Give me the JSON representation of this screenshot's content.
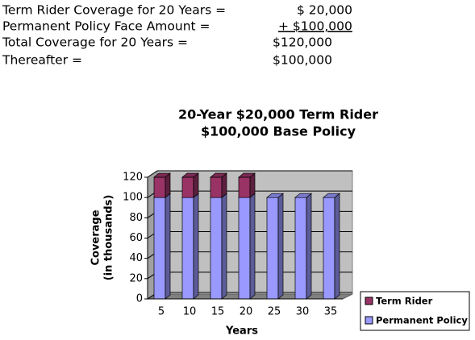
{
  "summary": [
    {
      "label": "Term Rider Coverage for 20 Years =",
      "amount": "$ 20,000"
    },
    {
      "label": "Permanent Policy Face Amount =",
      "amount": "+ $100,000"
    },
    {
      "label": "Total Coverage for 20 Years =",
      "amount": "$120,000"
    },
    {
      "label": "Thereafter =",
      "amount": "$100,000"
    }
  ],
  "chart_data": {
    "type": "bar3d",
    "stacked": true,
    "title": [
      "20-Year $20,000 Term Rider",
      "$100,000 Base Policy"
    ],
    "y_label": [
      "Coverage",
      "(in thousands)"
    ],
    "x_label": "Years",
    "categories": [
      "5",
      "10",
      "15",
      "20",
      "25",
      "30",
      "35"
    ],
    "series": [
      {
        "name": "Permanent Policy",
        "color": "#9999ff",
        "values": [
          100,
          100,
          100,
          100,
          100,
          100,
          100
        ]
      },
      {
        "name": "Term Rider",
        "color": "#993366",
        "values": [
          20,
          20,
          20,
          20,
          0,
          0,
          0
        ]
      }
    ],
    "ylim": [
      0,
      120
    ],
    "yticks": [
      0,
      20,
      40,
      60,
      80,
      100,
      120
    ],
    "grid": true,
    "legend": "bottom-right"
  }
}
